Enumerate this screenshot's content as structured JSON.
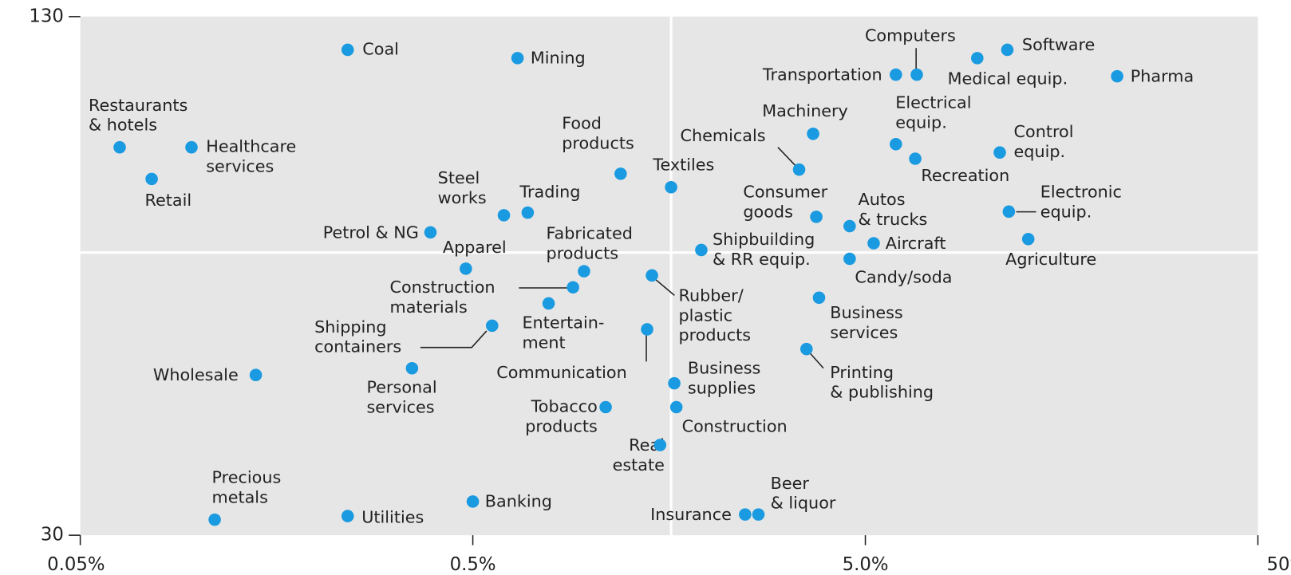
{
  "chart_data": {
    "type": "scatter",
    "x_scale": "log",
    "xlim": [
      0.05,
      50
    ],
    "ylim": [
      30,
      130
    ],
    "xticks": [
      {
        "value": 0.05,
        "label": "0.05%"
      },
      {
        "value": 0.5,
        "label": "0.5%"
      },
      {
        "value": 5,
        "label": "5.0%"
      },
      {
        "value": 50,
        "label": "50%"
      }
    ],
    "yticks": [
      30,
      130
    ],
    "x_reference": 1.6,
    "y_reference": 84.5,
    "color": "#1a9ae0",
    "background": "#e6e6e6",
    "series": [
      {
        "name": null,
        "color": "#1a9ae0",
        "labels": [
          "Coal",
          "Mining",
          "Restaurants & hotels",
          "Healthcare services",
          "Retail",
          "Food products",
          "Textiles",
          "Steel works",
          "Trading",
          "Petrol & NG",
          "Apparel",
          "Fabricated products",
          "Construction materials",
          "Entertain- ment",
          "Rubber/ plastic products",
          "Shipping containers",
          "Personal services",
          "Wholesale",
          "Communication",
          "Business supplies",
          "Tobacco products",
          "Construction",
          "Real estate",
          "Precious metals",
          "Utilities",
          "Banking",
          "Insurance",
          "Beer & liquor",
          "Shipbuilding & RR equip.",
          "Chemicals",
          "Machinery",
          "Consumer goods",
          "Autos & trucks",
          "Aircraft",
          "Candy/soda",
          "Business services",
          "Printing & publishing",
          "Transportation",
          "Computers",
          "Medical equip.",
          "Software",
          "Pharma",
          "Electrical equip.",
          "Recreation",
          "Control equip.",
          "Electronic equip.",
          "Agriculture"
        ],
        "x": [
          0.24,
          0.65,
          0.063,
          0.096,
          0.076,
          1.19,
          1.6,
          0.6,
          0.69,
          0.39,
          0.48,
          0.96,
          0.9,
          0.78,
          1.43,
          0.56,
          0.35,
          0.14,
          1.39,
          1.63,
          1.09,
          1.65,
          1.5,
          0.11,
          0.24,
          0.5,
          2.47,
          2.67,
          1.91,
          3.39,
          3.68,
          3.75,
          4.56,
          5.25,
          4.56,
          3.81,
          3.54,
          5.98,
          6.76,
          9.64,
          11.5,
          21.9,
          5.98,
          6.7,
          11.0,
          11.6,
          13.0
        ],
        "values": [
          123.6,
          122.0,
          104.8,
          104.8,
          98.7,
          99.7,
          97.1,
          91.7,
          92.2,
          88.4,
          81.4,
          80.9,
          77.8,
          74.7,
          80.1,
          70.4,
          62.2,
          60.9,
          69.7,
          59.3,
          54.7,
          54.7,
          47.4,
          33.0,
          33.7,
          36.5,
          34.0,
          34.0,
          85.0,
          100.5,
          107.4,
          91.4,
          89.6,
          86.3,
          83.3,
          75.8,
          65.9,
          118.8,
          118.8,
          122.0,
          123.6,
          118.5,
          105.4,
          102.6,
          103.8,
          92.4,
          87.1
        ]
      }
    ]
  }
}
